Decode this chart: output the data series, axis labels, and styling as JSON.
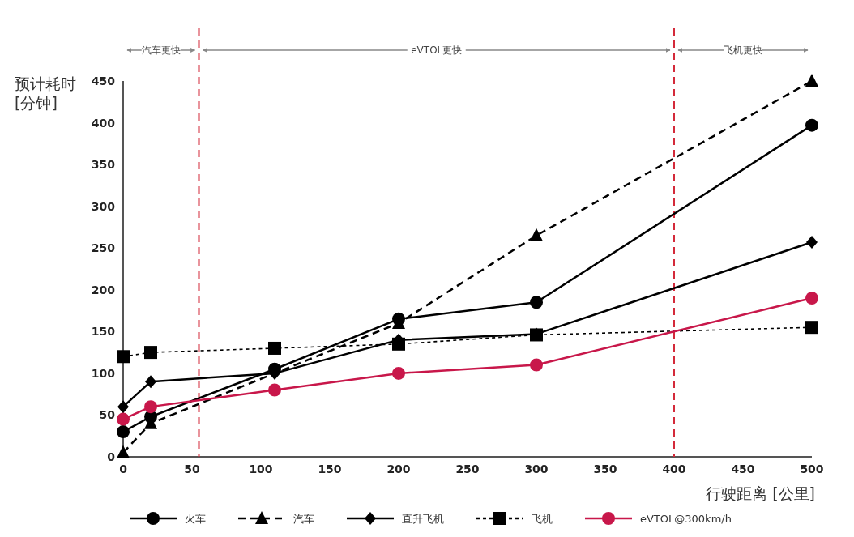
{
  "chart_data": {
    "type": "line",
    "xlabel": "行驶距离 [公里]",
    "ylabel": "预计耗时\n[分钟]",
    "xlim": [
      0,
      500
    ],
    "ylim": [
      0,
      450
    ],
    "xticks": [
      0,
      50,
      100,
      150,
      200,
      250,
      300,
      350,
      400,
      450,
      500
    ],
    "yticks": [
      0,
      50,
      100,
      150,
      200,
      250,
      300,
      350,
      400,
      450
    ],
    "grid": false,
    "legend": "bottom",
    "series": [
      {
        "name": "火车",
        "color": "#000000",
        "marker": "circle",
        "line_style": "solid",
        "x": [
          0,
          20,
          110,
          200,
          300,
          500
        ],
        "values": [
          30,
          48,
          105,
          165,
          185,
          397
        ]
      },
      {
        "name": "汽车",
        "color": "#000000",
        "marker": "triangle",
        "line_style": "dashed",
        "x": [
          0,
          20,
          200,
          300,
          500
        ],
        "values": [
          5,
          40,
          160,
          265,
          450
        ]
      },
      {
        "name": "直升飞机",
        "color": "#000000",
        "marker": "diamond",
        "line_style": "solid",
        "x": [
          0,
          20,
          110,
          200,
          300,
          500
        ],
        "values": [
          60,
          90,
          100,
          140,
          147,
          257
        ]
      },
      {
        "name": "飞机",
        "color": "#000000",
        "marker": "square",
        "line_style": "dotted",
        "x": [
          0,
          20,
          110,
          200,
          300,
          500
        ],
        "values": [
          120,
          125,
          130,
          135,
          146,
          155
        ]
      },
      {
        "name": "eVTOL@300km/h",
        "color": "#c8174a",
        "marker": "circle",
        "line_style": "solid",
        "x": [
          0,
          20,
          110,
          200,
          300,
          500
        ],
        "values": [
          45,
          60,
          80,
          100,
          110,
          190
        ]
      }
    ],
    "ref_lines": [
      {
        "axis": "x",
        "value": 55,
        "color": "#d42a3a",
        "line_style": "dashed"
      },
      {
        "axis": "x",
        "value": 400,
        "color": "#d42a3a",
        "line_style": "dashed"
      }
    ],
    "annotations": [
      "汽车更快",
      "eVTOL更快",
      "飞机更快"
    ]
  }
}
